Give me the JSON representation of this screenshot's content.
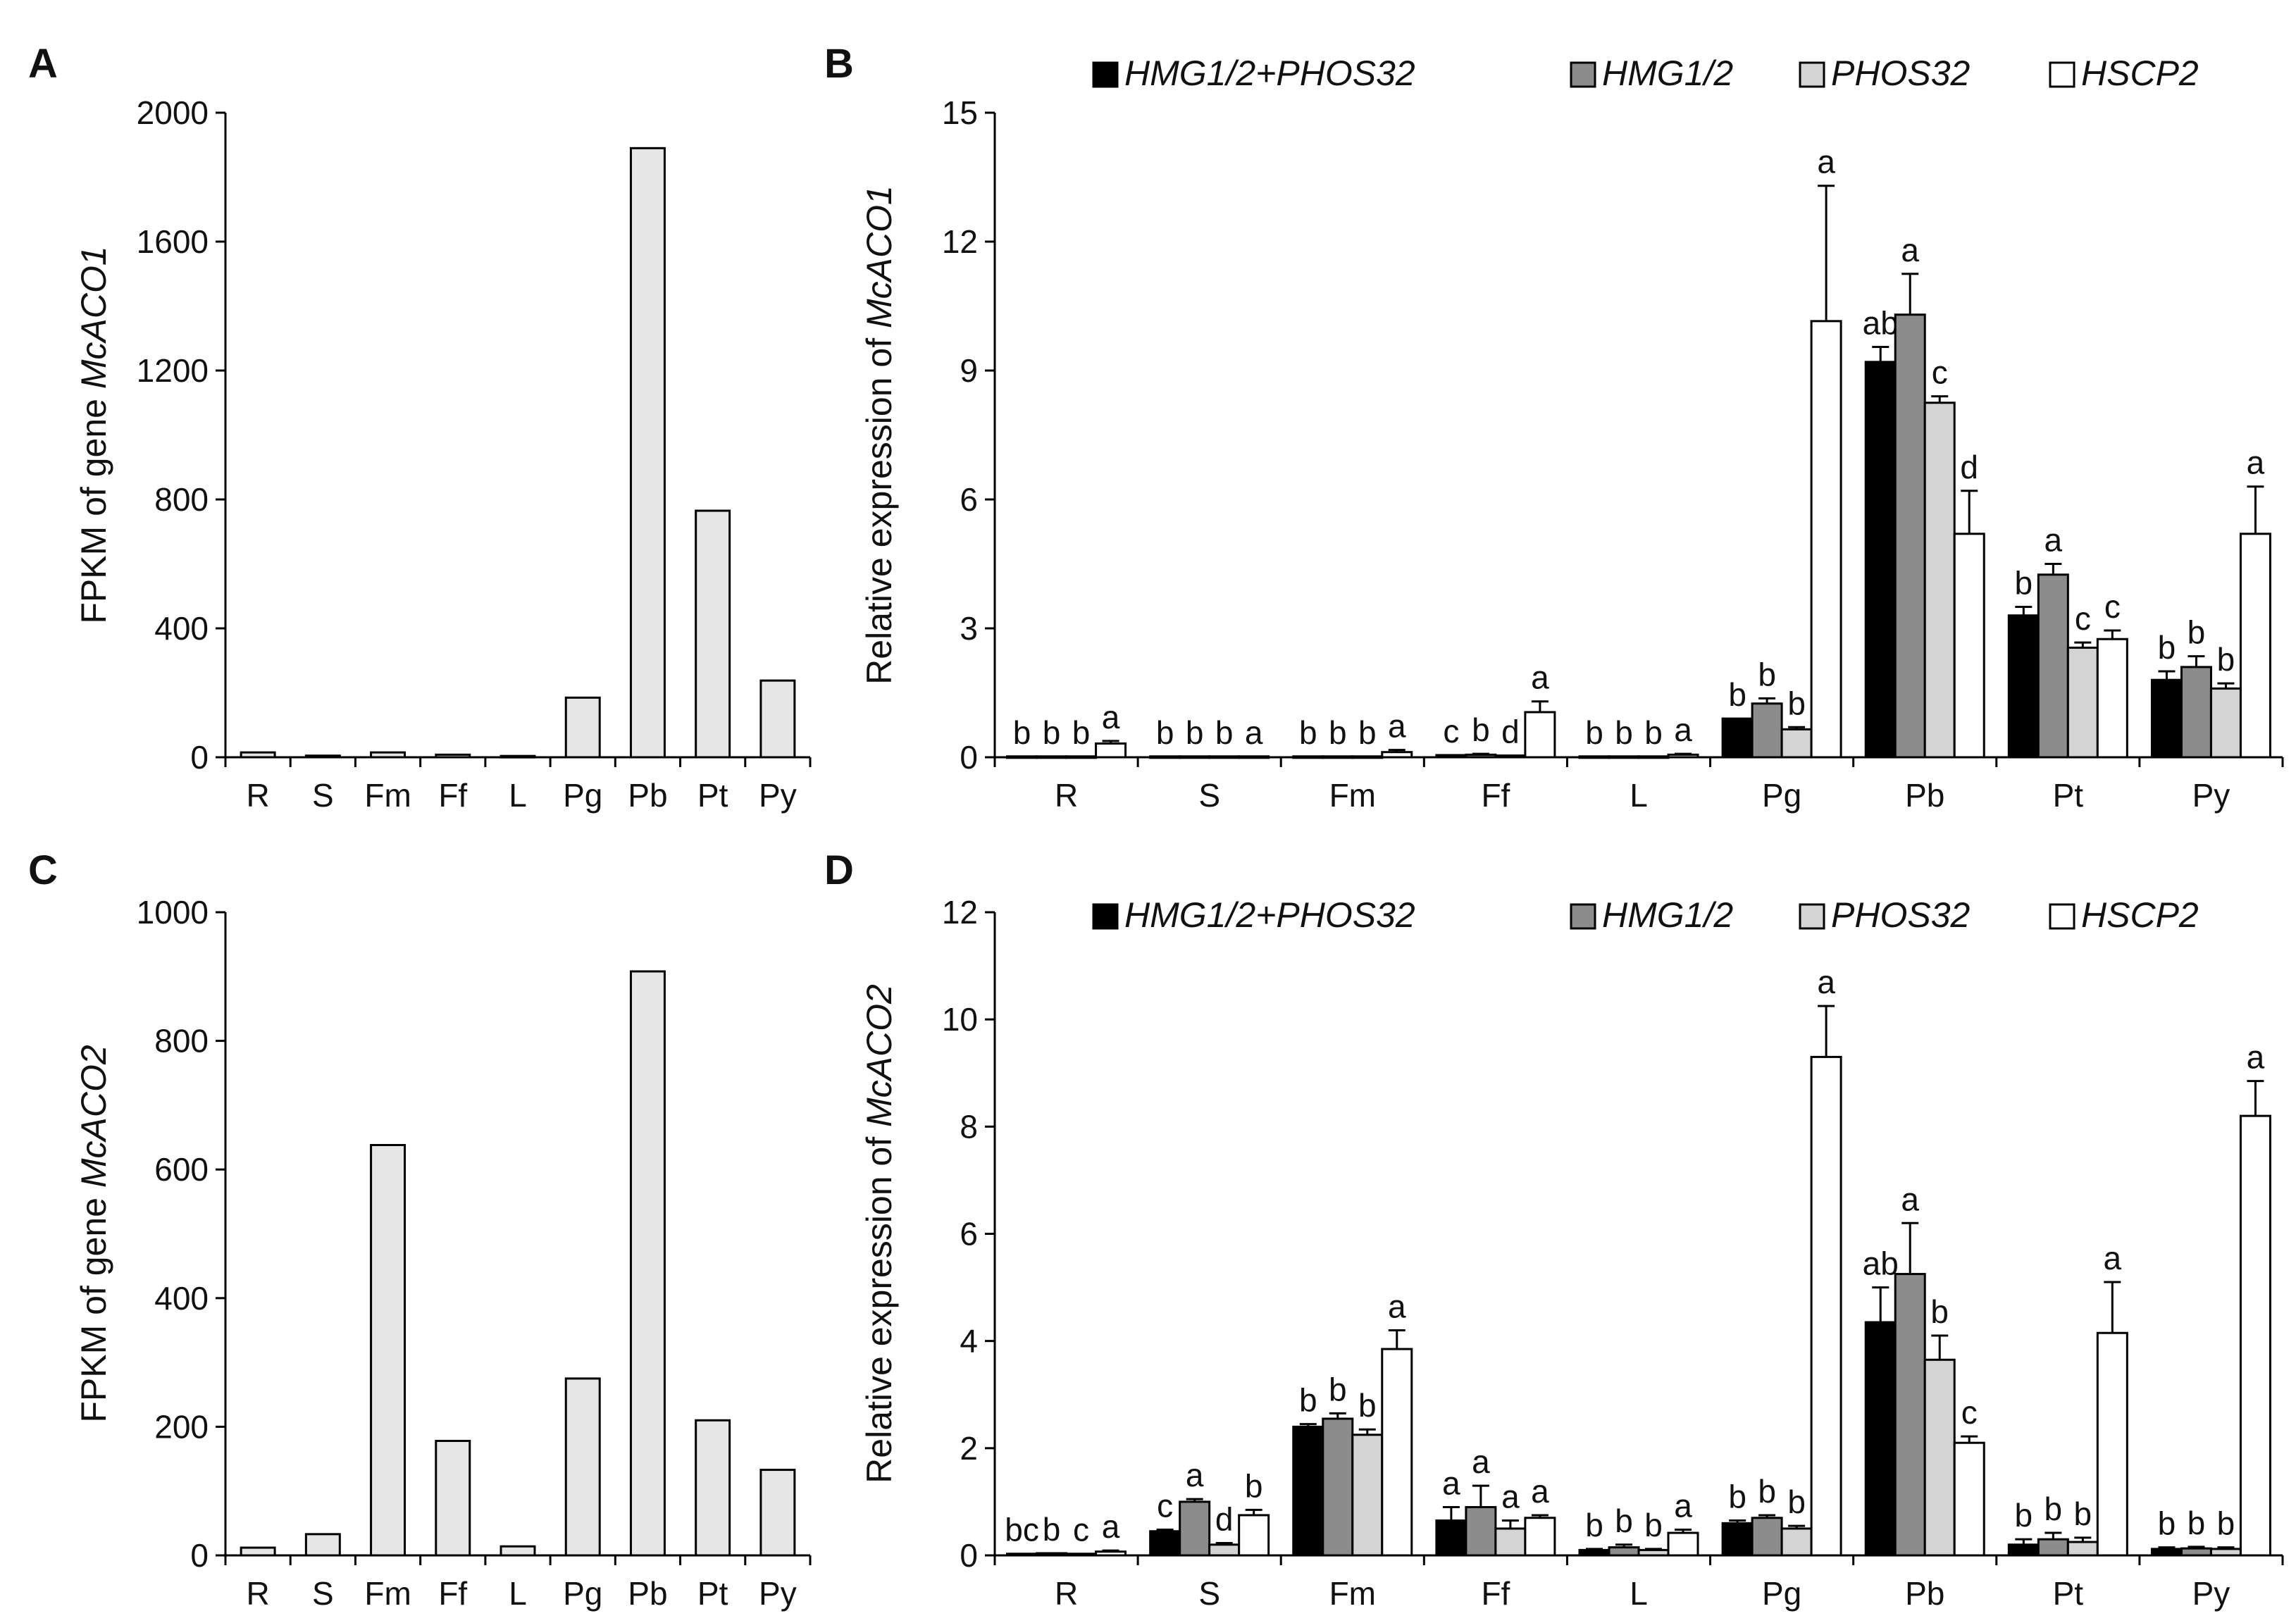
{
  "chart_data": [
    {
      "panel": "A",
      "type": "bar",
      "ylabel_prefix": "FPKM of gene ",
      "ylabel_gene": "McACO1",
      "ylim": [
        0,
        2000
      ],
      "yticks": [
        "0",
        "400",
        "800",
        "1200",
        "1600",
        "2000"
      ],
      "categories": [
        "R",
        "S",
        "Fm",
        "Ff",
        "L",
        "Pg",
        "Pb",
        "Pt",
        "Py"
      ],
      "values": [
        15,
        5,
        15,
        8,
        4,
        185,
        1890,
        765,
        238
      ]
    },
    {
      "panel": "B",
      "type": "bar",
      "ylabel_prefix": "Relative expression of ",
      "ylabel_gene": "McACO1",
      "ylim": [
        0,
        15
      ],
      "yticks": [
        "0",
        "3",
        "6",
        "9",
        "12",
        "15"
      ],
      "categories": [
        "R",
        "S",
        "Fm",
        "Ff",
        "L",
        "Pg",
        "Pb",
        "Pt",
        "Py"
      ],
      "series": [
        {
          "name": "HMG1/2+PHOS32",
          "color": "#000000",
          "values": [
            0.02,
            0.02,
            0.02,
            0.05,
            0.02,
            0.9,
            9.2,
            3.3,
            1.8
          ],
          "errors": [
            0,
            0,
            0,
            0,
            0,
            0,
            0.35,
            0.2,
            0.2
          ],
          "letters": [
            "b",
            "b",
            "b",
            "c",
            "b",
            "b",
            "ab",
            "b",
            "b"
          ]
        },
        {
          "name": "HMG1/2",
          "color": "#8c8c8c",
          "values": [
            0.02,
            0.02,
            0.02,
            0.06,
            0.02,
            1.25,
            10.3,
            4.25,
            2.1
          ],
          "errors": [
            0,
            0,
            0,
            0.02,
            0,
            0.12,
            0.95,
            0.25,
            0.25
          ],
          "letters": [
            "b",
            "b",
            "b",
            "b",
            "b",
            "b",
            "a",
            "a",
            "b"
          ]
        },
        {
          "name": "PHOS32",
          "color": "#d4d4d4",
          "values": [
            0.02,
            0.02,
            0.02,
            0.04,
            0.02,
            0.65,
            8.25,
            2.55,
            1.6
          ],
          "errors": [
            0,
            0,
            0,
            0,
            0,
            0.05,
            0.15,
            0.12,
            0.12
          ],
          "letters": [
            "b",
            "b",
            "b",
            "d",
            "b",
            "b",
            "c",
            "c",
            "b"
          ]
        },
        {
          "name": "HSCP2",
          "color": "#ffffff",
          "values": [
            0.32,
            0.02,
            0.12,
            1.05,
            0.06,
            10.15,
            5.2,
            2.75,
            5.2
          ],
          "errors": [
            0.06,
            0,
            0.05,
            0.25,
            0.02,
            3.15,
            1.0,
            0.2,
            1.1
          ],
          "letters": [
            "a",
            "a",
            "a",
            "a",
            "a",
            "a",
            "d",
            "c",
            "a"
          ]
        }
      ]
    },
    {
      "panel": "C",
      "type": "bar",
      "ylabel_prefix": "FPKM  of gene ",
      "ylabel_gene": "McACO2",
      "ylim": [
        0,
        1000
      ],
      "yticks": [
        "0",
        "200",
        "400",
        "600",
        "800",
        "1000"
      ],
      "categories": [
        "R",
        "S",
        "Fm",
        "Ff",
        "L",
        "Pg",
        "Pb",
        "Pt",
        "Py"
      ],
      "values": [
        12,
        33,
        638,
        178,
        14,
        275,
        908,
        210,
        133
      ]
    },
    {
      "panel": "D",
      "type": "bar",
      "ylabel_prefix": "Relative expression of ",
      "ylabel_gene": "McACO2",
      "ylim": [
        0,
        12
      ],
      "yticks": [
        "0",
        "2",
        "4",
        "6",
        "8",
        "10",
        "12"
      ],
      "categories": [
        "R",
        "S",
        "Fm",
        "Ff",
        "L",
        "Pg",
        "Pb",
        "Pt",
        "Py"
      ],
      "series": [
        {
          "name": "HMG1/2+PHOS32",
          "color": "#000000",
          "values": [
            0.03,
            0.45,
            2.4,
            0.65,
            0.1,
            0.6,
            4.35,
            0.2,
            0.12
          ],
          "errors": [
            0,
            0.03,
            0.05,
            0.25,
            0.02,
            0.05,
            0.65,
            0.1,
            0.03
          ],
          "letters": [
            "bc",
            "c",
            "b",
            "a",
            "b",
            "b",
            "ab",
            "b",
            "b"
          ]
        },
        {
          "name": "HMG1/2",
          "color": "#8c8c8c",
          "values": [
            0.04,
            1.0,
            2.55,
            0.9,
            0.15,
            0.7,
            5.25,
            0.3,
            0.13
          ],
          "errors": [
            0,
            0.05,
            0.1,
            0.4,
            0.05,
            0.05,
            0.95,
            0.12,
            0.03
          ],
          "letters": [
            "b",
            "a",
            "b",
            "a",
            "b",
            "b",
            "a",
            "b",
            "b"
          ]
        },
        {
          "name": "PHOS32",
          "color": "#d4d4d4",
          "values": [
            0.03,
            0.2,
            2.25,
            0.5,
            0.1,
            0.5,
            3.65,
            0.25,
            0.12
          ],
          "errors": [
            0,
            0.03,
            0.1,
            0.15,
            0.02,
            0.05,
            0.45,
            0.08,
            0.03
          ],
          "letters": [
            "c",
            "d",
            "b",
            "a",
            "b",
            "b",
            "b",
            "b",
            "b"
          ]
        },
        {
          "name": "HSCP2",
          "color": "#ffffff",
          "values": [
            0.07,
            0.75,
            3.85,
            0.7,
            0.42,
            9.3,
            2.1,
            4.15,
            8.2
          ],
          "errors": [
            0.02,
            0.1,
            0.35,
            0.05,
            0.06,
            0.95,
            0.12,
            0.95,
            0.65
          ],
          "letters": [
            "a",
            "b",
            "a",
            "a",
            "a",
            "a",
            "c",
            "a",
            "a"
          ]
        }
      ]
    }
  ]
}
